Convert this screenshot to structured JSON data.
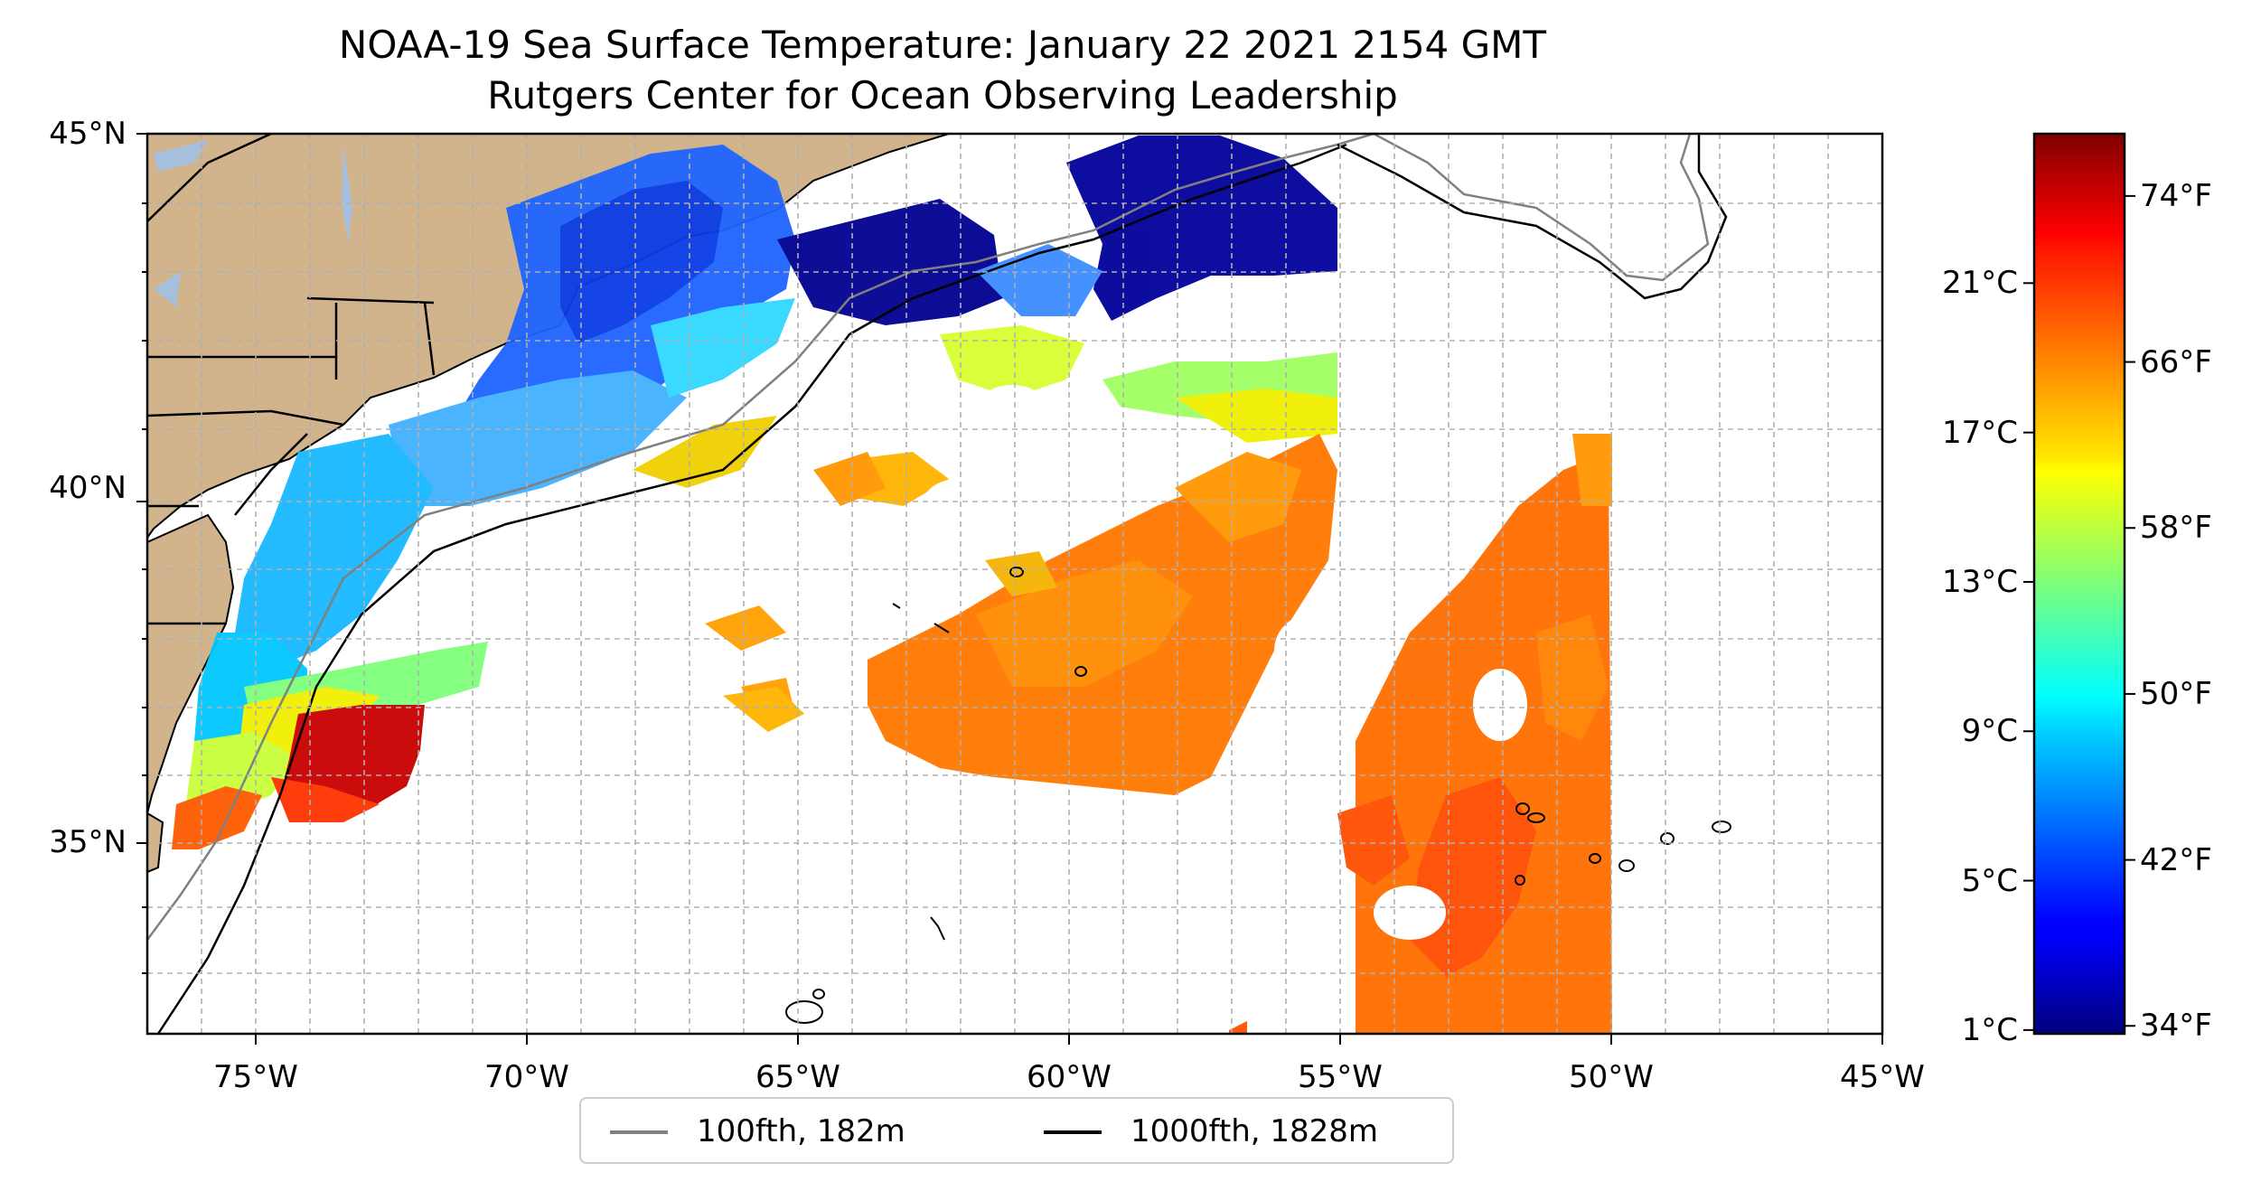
{
  "title": {
    "line1": "NOAA-19 Sea Surface Temperature: January 22 2021 2154 GMT",
    "line2": "Rutgers Center for Ocean Observing Leadership"
  },
  "map": {
    "lon_range": [
      -77,
      -45
    ],
    "lat_range": [
      32.3,
      45
    ],
    "lat_labels": [
      {
        "lat": 45,
        "text": "45°N"
      },
      {
        "lat": 40,
        "text": "40°N"
      },
      {
        "lat": 35,
        "text": "35°N"
      }
    ],
    "lon_labels": [
      {
        "lon": -75,
        "text": "75°W"
      },
      {
        "lon": -70,
        "text": "70°W"
      },
      {
        "lon": -65,
        "text": "65°W"
      },
      {
        "lon": -60,
        "text": "60°W"
      },
      {
        "lon": -55,
        "text": "55°W"
      },
      {
        "lon": -50,
        "text": "50°W"
      },
      {
        "lon": -45,
        "text": "45°W"
      }
    ],
    "land_color": "#d2b48c",
    "lake_color": "#a5bfdd",
    "gridlines": true,
    "isobath_100_color": "#808080",
    "isobath_1000_color": "#000000"
  },
  "colorbar": {
    "colormap": "jet",
    "celsius_labels": [
      {
        "value_c": 1,
        "text": "1°C"
      },
      {
        "value_c": 5,
        "text": "5°C"
      },
      {
        "value_c": 9,
        "text": "9°C"
      },
      {
        "value_c": 13,
        "text": "13°C"
      },
      {
        "value_c": 17,
        "text": "17°C"
      },
      {
        "value_c": 21,
        "text": "21°C"
      }
    ],
    "fahrenheit_labels": [
      {
        "value_f": 34,
        "text": "34°F"
      },
      {
        "value_f": 42,
        "text": "42°F"
      },
      {
        "value_f": 50,
        "text": "50°F"
      },
      {
        "value_f": 58,
        "text": "58°F"
      },
      {
        "value_f": 66,
        "text": "66°F"
      },
      {
        "value_f": 74,
        "text": "74°F"
      }
    ],
    "range_c": [
      0.9,
      25
    ]
  },
  "legend": {
    "items": [
      {
        "label": "100fth, 182m",
        "color": "#808080"
      },
      {
        "label": "1000fth, 1828m",
        "color": "#000000"
      }
    ]
  }
}
